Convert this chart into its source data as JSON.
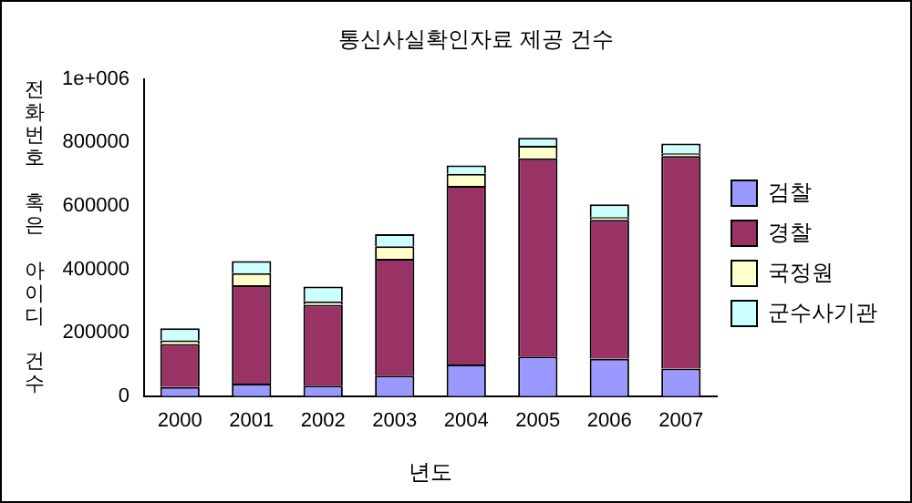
{
  "chart_data": {
    "type": "bar",
    "title": "통신사실확인자료 제공 건수",
    "xlabel": "년도",
    "ylabel": "전화번호 혹은 아이디 건수",
    "categories": [
      "2000",
      "2001",
      "2002",
      "2003",
      "2004",
      "2005",
      "2006",
      "2007"
    ],
    "stacked": true,
    "legend": "right",
    "grid": false,
    "ylim": [
      0,
      1000000
    ],
    "yticks": [
      0,
      200000,
      400000,
      600000,
      800000,
      {
        "value": 1000000,
        "label": "1e+006"
      }
    ],
    "series": [
      {
        "name": "검찰",
        "color": "#9999ff",
        "values": [
          29000,
          40000,
          33000,
          65000,
          100000,
          125000,
          118000,
          87000
        ]
      },
      {
        "name": "경찰",
        "color": "#993366",
        "values": [
          136000,
          310000,
          255000,
          368000,
          563000,
          625000,
          438000,
          670000
        ]
      },
      {
        "name": "국정원",
        "color": "#ffffcc",
        "values": [
          11000,
          38000,
          11000,
          40000,
          38000,
          40000,
          9000,
          9000
        ]
      },
      {
        "name": "군수사기관",
        "color": "#ccffff",
        "values": [
          38000,
          38000,
          47000,
          38000,
          27000,
          25000,
          40000,
          31000
        ]
      }
    ]
  }
}
